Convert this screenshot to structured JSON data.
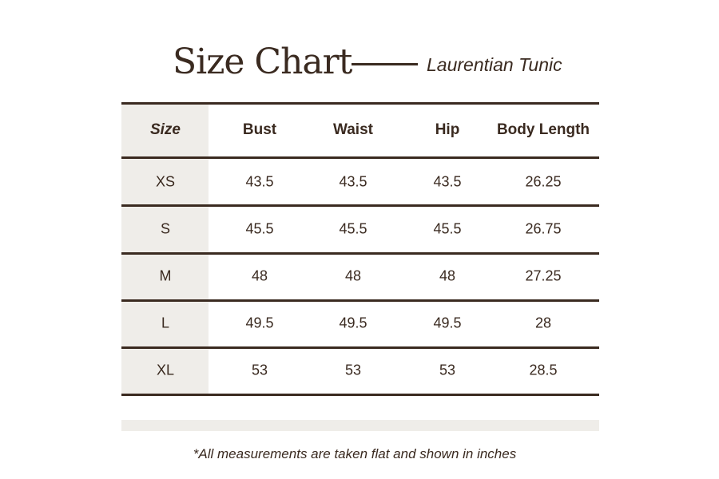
{
  "header": {
    "title": "Size Chart",
    "subtitle": "Laurentian Tunic"
  },
  "table": {
    "columns": [
      "Size",
      "Bust",
      "Waist",
      "Hip",
      "Body Length"
    ],
    "rows": [
      [
        "XS",
        "43.5",
        "43.5",
        "43.5",
        "26.25"
      ],
      [
        "S",
        "45.5",
        "45.5",
        "45.5",
        "26.75"
      ],
      [
        "M",
        "48",
        "48",
        "48",
        "27.25"
      ],
      [
        "L",
        "49.5",
        "49.5",
        "49.5",
        "28"
      ],
      [
        "XL",
        "53",
        "53",
        "53",
        "28.5"
      ]
    ]
  },
  "footnote": "*All measurements are taken flat and shown in inches",
  "colors": {
    "text": "#3a2a20",
    "shade": "#efede9"
  }
}
